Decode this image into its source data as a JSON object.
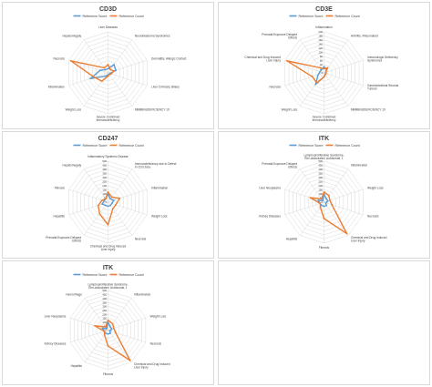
{
  "colors": {
    "reference_score": "#5b9bd5",
    "reference_count": "#ed7d31",
    "grid": "#d9d9d9",
    "text": "#404040"
  },
  "chart_data": [
    {
      "type": "radar",
      "title": "CD3D",
      "legend": [
        "Reference Score",
        "Reference Count"
      ],
      "legend_position": "top",
      "radial_ticks": [],
      "categories": [
        "Liver Diseases",
        "Neuroblastoma Syndromes",
        "Dermatitis, Allergic Contact",
        "Liver Cirrhosis, Biliary",
        "MBMBNUDEFICIENCY 19",
        "Severe Combined Immunodeficiency",
        "Weight Loss",
        "Inflammation",
        "Necrosis",
        "Hepatomegaly"
      ],
      "series": [
        {
          "name": "Reference Score",
          "values": [
            0.1,
            0.25,
            0.2,
            0.05,
            0.05,
            0.05,
            0.1,
            0.45,
            0.2,
            0.1
          ]
        },
        {
          "name": "Reference Count",
          "values": [
            0.2,
            0.1,
            0.15,
            0.08,
            0.05,
            0.08,
            0.25,
            0.35,
            0.95,
            0.15
          ]
        }
      ]
    },
    {
      "type": "radar",
      "title": "CD3E",
      "legend": [
        "Reference Score",
        "Reference Count"
      ],
      "legend_position": "top",
      "radial_ticks": [
        "200",
        "180",
        "160",
        "140",
        "120",
        "100",
        "80",
        "60",
        "40",
        "20",
        "0"
      ],
      "categories": [
        "Inflammation",
        "Arthritis, Rheumatoid",
        "Immunologic Deficiency Syndromes",
        "Gastrointestinal Stromal Tumors",
        "MBMBNUDEFICIENCY 19",
        "Severe Combined Immunodeficiency",
        "Weight Loss",
        "Necrosis",
        "Chemical and Drug Induced Liver Injury",
        "Prenatal Exposure Delayed Effects"
      ],
      "series": [
        {
          "name": "Reference Score",
          "values": [
            0.15,
            0.1,
            0.05,
            0.05,
            0.05,
            0.1,
            0.35,
            0.15,
            0.1,
            0.1
          ]
        },
        {
          "name": "Reference Count",
          "values": [
            0.1,
            0.15,
            0.05,
            0.05,
            0.05,
            0.1,
            0.3,
            0.3,
            0.95,
            0.15
          ]
        }
      ]
    },
    {
      "type": "radar",
      "title": "CD247",
      "legend": [
        "Reference Score",
        "Reference Count"
      ],
      "legend_position": "top",
      "radial_ticks": [
        "500",
        "450",
        "400",
        "350",
        "300",
        "250",
        "200",
        "150",
        "100",
        "50",
        "0"
      ],
      "categories": [
        "Inflammatory Systemic Disease",
        "Immunodeficiency due to Defect in CD3 Zeta",
        "Inflammation",
        "Weight Loss",
        "Necrosis",
        "Chemical and Drug Induced Liver Injury",
        "Prenatal Exposure Delayed Effects",
        "Hepatitis",
        "Fibrosis",
        "Hepatomegaly"
      ],
      "series": [
        {
          "name": "Reference Score",
          "values": [
            0.2,
            0.1,
            0.15,
            0.1,
            0.1,
            0.1,
            0.1,
            0.15,
            0.1,
            0.1
          ]
        },
        {
          "name": "Reference Count",
          "values": [
            0.25,
            0.15,
            0.3,
            0.2,
            0.2,
            0.55,
            0.35,
            0.25,
            0.15,
            0.1
          ]
        }
      ]
    },
    {
      "type": "radar",
      "title": "ITK",
      "legend": [
        "Reference Score",
        "Reference Count"
      ],
      "legend_position": "top",
      "radial_ticks": [
        "500",
        "450",
        "400",
        "350",
        "300",
        "250",
        "200",
        "150",
        "100",
        "50",
        "0"
      ],
      "categories": [
        "Lymphoproliferative Syndrome, Ebv-Associated, Autosomal, 1",
        "Inflammation",
        "Weight Loss",
        "Necrosis",
        "Chemical and Drug Induced Liver Injury",
        "Fibrosis",
        "Hepatitis",
        "Kidney Diseases",
        "Liver Neoplasms",
        "Prenatal Exposure Delayed Effects"
      ],
      "series": [
        {
          "name": "Reference Score",
          "values": [
            0.2,
            0.1,
            0.1,
            0.05,
            0.1,
            0.1,
            0.1,
            0.1,
            0.15,
            0.05
          ]
        },
        {
          "name": "Reference Count",
          "values": [
            0.25,
            0.2,
            0.15,
            0.2,
            0.95,
            0.4,
            0.15,
            0.1,
            0.35,
            0.1
          ]
        }
      ]
    },
    {
      "type": "radar",
      "title": "ITK",
      "legend": [
        "Reference Score",
        "Reference Count"
      ],
      "legend_position": "top",
      "radial_ticks": [
        "500",
        "450",
        "400",
        "350",
        "300",
        "250",
        "200",
        "150",
        "100",
        "50",
        "0"
      ],
      "categories": [
        "Lymphoproliferative Syndrome, Ebv-Associated, Autosomal, 1",
        "Inflammation",
        "Weight Loss",
        "Necrosis",
        "Chemical and Drug Induced Liver Injury",
        "Fibrosis",
        "Hepatitis",
        "Kidney Diseases",
        "Liver Neoplasms",
        "Hemorrhage"
      ],
      "series": [
        {
          "name": "Reference Score",
          "values": [
            0.2,
            0.1,
            0.1,
            0.05,
            0.1,
            0.1,
            0.1,
            0.1,
            0.15,
            0.05
          ]
        },
        {
          "name": "Reference Count",
          "values": [
            0.25,
            0.2,
            0.15,
            0.2,
            0.95,
            0.4,
            0.15,
            0.1,
            0.35,
            0.1
          ]
        }
      ]
    }
  ]
}
